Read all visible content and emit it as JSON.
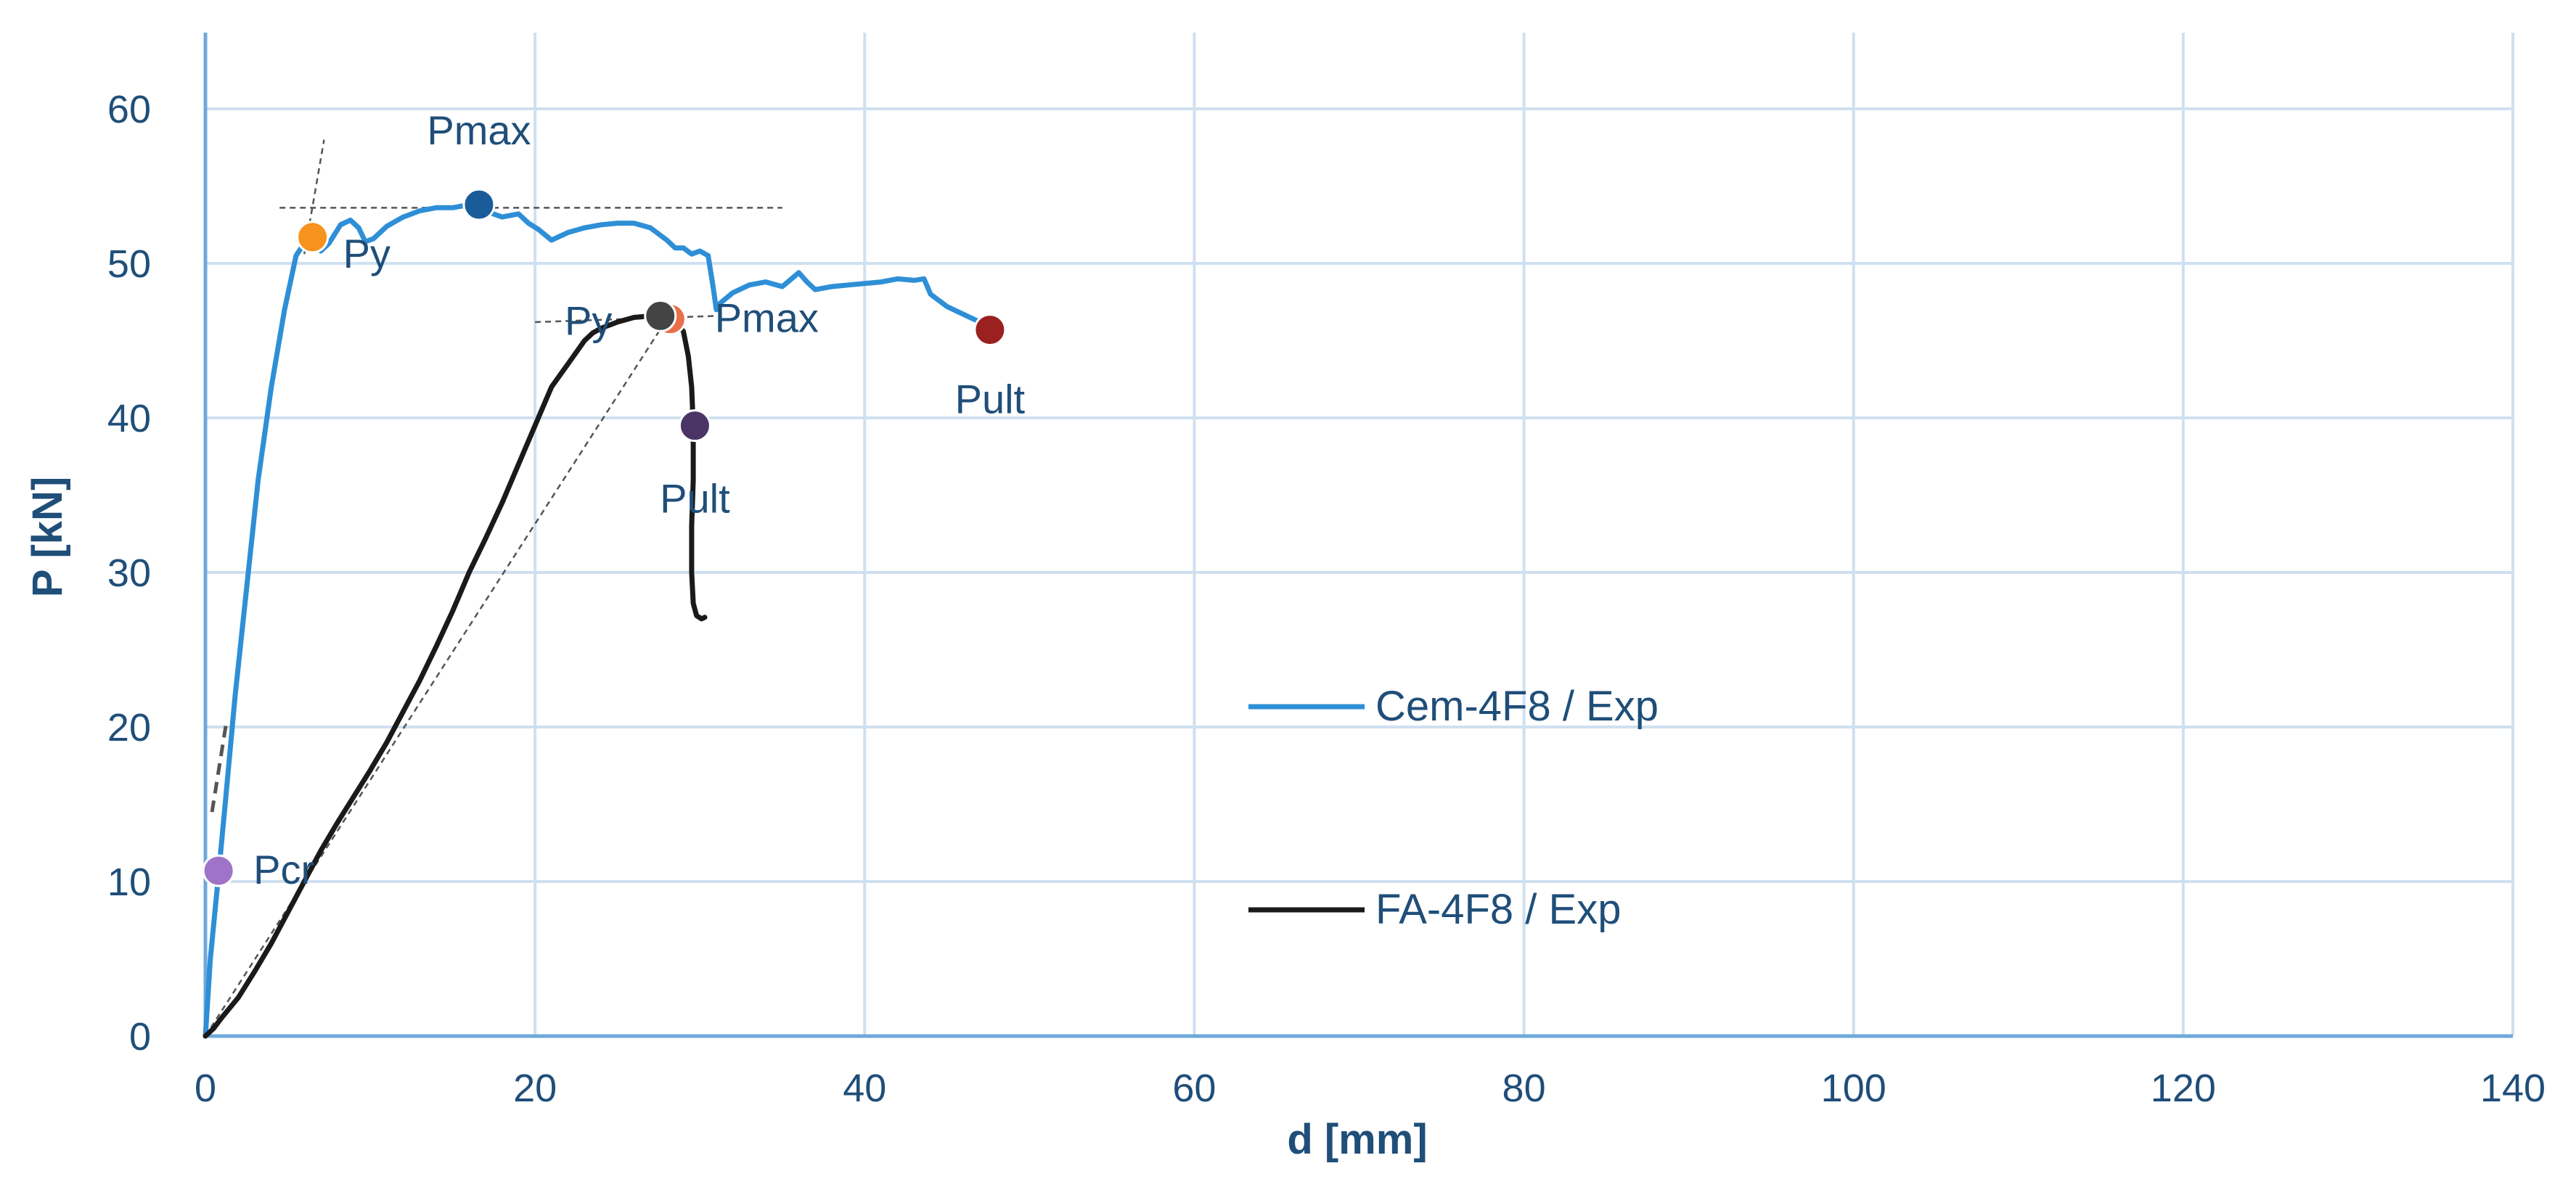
{
  "chart_data": {
    "type": "line",
    "title": "",
    "xlabel": "d [mm]",
    "ylabel": "P [kN]",
    "xlim": [
      0,
      140
    ],
    "ylim": [
      0,
      60
    ],
    "xticks": [
      0,
      20,
      40,
      60,
      80,
      100,
      120,
      140
    ],
    "yticks": [
      0,
      10,
      20,
      30,
      40,
      50,
      60
    ],
    "grid": true,
    "legend_position": "center-right",
    "colors": {
      "grid": "#cfe0f0",
      "axis": "#6fa8dc",
      "cem_series": "#2e8fd6",
      "fa_series": "#1a1a1a",
      "guide": "#555555"
    },
    "series": [
      {
        "name": "Cem-4F8 / Exp",
        "color": "#2e8fd6",
        "x": [
          0,
          0.3,
          0.8,
          1.2,
          1.8,
          2.5,
          3.2,
          4.0,
          4.8,
          5.5,
          6.0,
          6.3,
          6.6,
          7.0,
          7.5,
          8.2,
          8.8,
          9.3,
          9.7,
          10.2,
          11.0,
          12.0,
          13.0,
          14.0,
          15.0,
          16.0,
          16.5,
          17.2,
          18.0,
          19.0,
          19.6,
          20.2,
          21.0,
          22.0,
          23.0,
          24.0,
          25.0,
          26.0,
          27.0,
          28.0,
          28.5,
          29.0,
          29.5,
          30.0,
          30.5,
          30.8,
          31.0,
          31.2,
          32.0,
          33.0,
          34.0,
          35.0,
          36.0,
          36.5,
          37.0,
          38.0,
          39.0,
          40.0,
          41.0,
          42.0,
          43.0,
          43.6,
          44.0,
          45.0,
          46.0,
          47.0,
          47.6
        ],
        "y": [
          0,
          5,
          10.5,
          15,
          22,
          29,
          36,
          42,
          47,
          50.5,
          51.3,
          51.6,
          51.2,
          50.8,
          51.3,
          52.5,
          52.8,
          52.3,
          51.4,
          51.6,
          52.4,
          53.0,
          53.4,
          53.6,
          53.6,
          53.8,
          53.6,
          53.3,
          53.0,
          53.2,
          52.6,
          52.2,
          51.5,
          52.0,
          52.3,
          52.5,
          52.6,
          52.6,
          52.3,
          51.5,
          51.0,
          51.0,
          50.6,
          50.8,
          50.5,
          48.5,
          47.0,
          47.4,
          48.1,
          48.6,
          48.8,
          48.5,
          49.4,
          48.8,
          48.3,
          48.5,
          48.6,
          48.7,
          48.8,
          49.0,
          48.9,
          49.0,
          48.0,
          47.2,
          46.7,
          46.2,
          45.7
        ]
      },
      {
        "name": "FA-4F8 / Exp",
        "color": "#1a1a1a",
        "x": [
          0,
          0.5,
          1.0,
          2.0,
          3.0,
          4.0,
          5.0,
          6.0,
          7.0,
          8.0,
          9.0,
          10.0,
          11.0,
          12.0,
          13.0,
          14.0,
          15.0,
          16.0,
          17.0,
          18.0,
          19.0,
          20.0,
          21.0,
          22.0,
          23.0,
          23.5,
          24.0,
          25.0,
          26.0,
          27.0,
          27.5,
          28.0,
          28.5,
          29.0,
          29.3,
          29.5,
          29.6,
          29.6,
          29.5,
          29.5,
          29.6,
          29.8,
          30.1,
          30.3
        ],
        "y": [
          0,
          0.5,
          1.2,
          2.5,
          4.2,
          6.0,
          8.0,
          10.0,
          12.0,
          13.8,
          15.5,
          17.2,
          19.0,
          21.0,
          23.0,
          25.2,
          27.5,
          30.0,
          32.2,
          34.5,
          37.0,
          39.5,
          42.0,
          43.5,
          45.0,
          45.5,
          45.8,
          46.2,
          46.5,
          46.6,
          46.6,
          46.5,
          46.2,
          45.6,
          44.0,
          42.0,
          39.5,
          36.0,
          33.0,
          30.0,
          28.0,
          27.2,
          27.0,
          27.1
        ]
      }
    ],
    "points": [
      {
        "label": "Pcr",
        "x": 0.8,
        "y": 10.7,
        "color": "#9f73c7",
        "label_dx": 20,
        "label_dy": 0
      },
      {
        "label": "Py",
        "x": 6.5,
        "y": 51.7,
        "color": "#f7931e",
        "label_dx": 20,
        "label_dy": 0
      },
      {
        "label": "Pmax",
        "x": 16.6,
        "y": 53.8,
        "color": "#1a5c99",
        "label_dx": 0,
        "label_dy": -1
      },
      {
        "label": "Pult",
        "x": 47.6,
        "y": 45.7,
        "color": "#9b2020",
        "label_dx": 0,
        "label_dy": 1
      },
      {
        "label": "Py",
        "x": 28.2,
        "y": 46.4,
        "color": "#e8704a",
        "label_dx": -1,
        "label_dy": 0
      },
      {
        "label": "Pmax",
        "x": 27.6,
        "y": 46.6,
        "color": "#444444",
        "label_dx": 1,
        "label_dy": 0
      },
      {
        "label": "Pult",
        "x": 29.7,
        "y": 39.5,
        "color": "#4a3566",
        "label_dx": 0,
        "label_dy": 1
      }
    ]
  }
}
